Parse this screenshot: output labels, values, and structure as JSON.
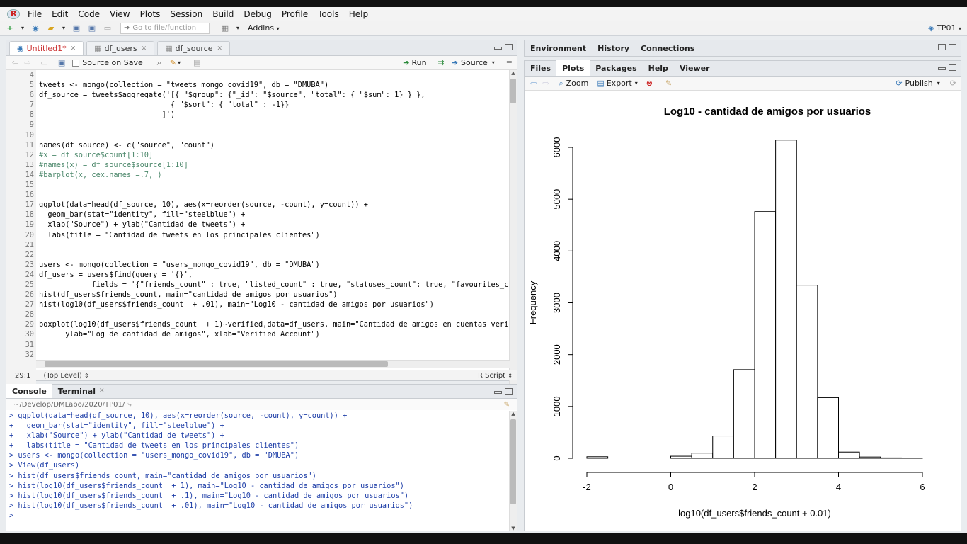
{
  "menubar": {
    "items": [
      "File",
      "Edit",
      "Code",
      "View",
      "Plots",
      "Session",
      "Build",
      "Debug",
      "Profile",
      "Tools",
      "Help"
    ]
  },
  "toolbar": {
    "goto_placeholder": "Go to file/function",
    "addins": "Addins",
    "project": "TP01"
  },
  "editor": {
    "tabs": [
      "Untitled1*",
      "df_users",
      "df_source"
    ],
    "source_on_save": "Source on Save",
    "run": "Run",
    "source": "Source",
    "line_numbers": [
      "4",
      "5",
      "6",
      "7",
      "8",
      "9",
      "10",
      "11",
      "12",
      "13",
      "14",
      "15",
      "16",
      "17",
      "18",
      "19",
      "20",
      "21",
      "22",
      "23",
      "24",
      "25",
      "26",
      "27",
      "28",
      "29",
      "30",
      "31",
      "32"
    ],
    "lines": [
      "",
      "tweets <- mongo(collection = \"tweets_mongo_covid19\", db = \"DMUBA\")",
      "df_source = tweets$aggregate('[{ \"$group\": {\"_id\": \"$source\", \"total\": { \"$sum\": 1} } },",
      "                              { \"$sort\": { \"total\" : -1}}",
      "                            ]')",
      "",
      "",
      "names(df_source) <- c(\"source\", \"count\")",
      "#x = df_source$count[1:10]",
      "#names(x) = df_source$source[1:10]",
      "#barplot(x, cex.names =.7, )",
      "",
      "",
      "ggplot(data=head(df_source, 10), aes(x=reorder(source, -count), y=count)) +",
      "  geom_bar(stat=\"identity\", fill=\"steelblue\") +",
      "  xlab(\"Source\") + ylab(\"Cantidad de tweets\") +",
      "  labs(title = \"Cantidad de tweets en los principales clientes\")",
      "",
      "",
      "users <- mongo(collection = \"users_mongo_covid19\", db = \"DMUBA\")",
      "df_users = users$find(query = '{}',",
      "            fields = '{\"friends_count\" : true, \"listed_count\" : true, \"statuses_count\": true, \"favourites_cou",
      "hist(df_users$friends_count, main=\"cantidad de amigos por usuarios\")",
      "hist(log10(df_users$friends_count  + .01), main=\"Log10 - cantidad de amigos por usuarios\")",
      "",
      "boxplot(log10(df_users$friends_count  + 1)~verified,data=df_users, main=\"Cantidad de amigos en cuentas verif",
      "      ylab=\"Log de cantidad de amigos\", xlab=\"Verified Account\")",
      "",
      ""
    ],
    "status_pos": "29:1",
    "status_scope": "(Top Level)",
    "status_type": "R Script"
  },
  "console": {
    "tabs": [
      "Console",
      "Terminal"
    ],
    "path": "~/Develop/DMLabo/2020/TP01/",
    "lines": [
      "> ggplot(data=head(df_source, 10), aes(x=reorder(source, -count), y=count)) +",
      "+   geom_bar(stat=\"identity\", fill=\"steelblue\") +",
      "+   xlab(\"Source\") + ylab(\"Cantidad de tweets\") +",
      "+   labs(title = \"Cantidad de tweets en los principales clientes\")",
      "> users <- mongo(collection = \"users_mongo_covid19\", db = \"DMUBA\")",
      "> View(df_users)",
      "> hist(df_users$friends_count, main=\"cantidad de amigos por usuarios\")",
      "> hist(log10(df_users$friends_count  + 1), main=\"Log10 - cantidad de amigos por usuarios\")",
      "> hist(log10(df_users$friends_count  + .1), main=\"Log10 - cantidad de amigos por usuarios\")",
      "> hist(log10(df_users$friends_count  + .01), main=\"Log10 - cantidad de amigos por usuarios\")",
      "> "
    ]
  },
  "env": {
    "tabs": [
      "Environment",
      "History",
      "Connections"
    ]
  },
  "files": {
    "tabs": [
      "Files",
      "Plots",
      "Packages",
      "Help",
      "Viewer"
    ],
    "zoom": "Zoom",
    "export": "Export",
    "publish": "Publish"
  },
  "chart_data": {
    "type": "bar",
    "title": "Log10 - cantidad de amigos por usuarios",
    "xlabel": "log10(df_users$friends_count + 0.01)",
    "ylabel": "Frequency",
    "xlim": [
      -2,
      6
    ],
    "ylim": [
      0,
      6000
    ],
    "xticks": [
      -2,
      0,
      2,
      4,
      6
    ],
    "yticks": [
      0,
      1000,
      2000,
      3000,
      4000,
      5000,
      6000
    ],
    "bins": [
      {
        "x0": -2.0,
        "x1": -1.5,
        "value": 30
      },
      {
        "x0": -1.5,
        "x1": -1.0,
        "value": 0
      },
      {
        "x0": -1.0,
        "x1": -0.5,
        "value": 0
      },
      {
        "x0": -0.5,
        "x1": 0.0,
        "value": 0
      },
      {
        "x0": 0.0,
        "x1": 0.5,
        "value": 40
      },
      {
        "x0": 0.5,
        "x1": 1.0,
        "value": 100
      },
      {
        "x0": 1.0,
        "x1": 1.5,
        "value": 430
      },
      {
        "x0": 1.5,
        "x1": 2.0,
        "value": 1710
      },
      {
        "x0": 2.0,
        "x1": 2.5,
        "value": 4760
      },
      {
        "x0": 2.5,
        "x1": 3.0,
        "value": 6140
      },
      {
        "x0": 3.0,
        "x1": 3.5,
        "value": 3340
      },
      {
        "x0": 3.5,
        "x1": 4.0,
        "value": 1170
      },
      {
        "x0": 4.0,
        "x1": 4.5,
        "value": 120
      },
      {
        "x0": 4.5,
        "x1": 5.0,
        "value": 25
      },
      {
        "x0": 5.0,
        "x1": 5.5,
        "value": 8
      },
      {
        "x0": 5.5,
        "x1": 6.0,
        "value": 3
      }
    ]
  }
}
